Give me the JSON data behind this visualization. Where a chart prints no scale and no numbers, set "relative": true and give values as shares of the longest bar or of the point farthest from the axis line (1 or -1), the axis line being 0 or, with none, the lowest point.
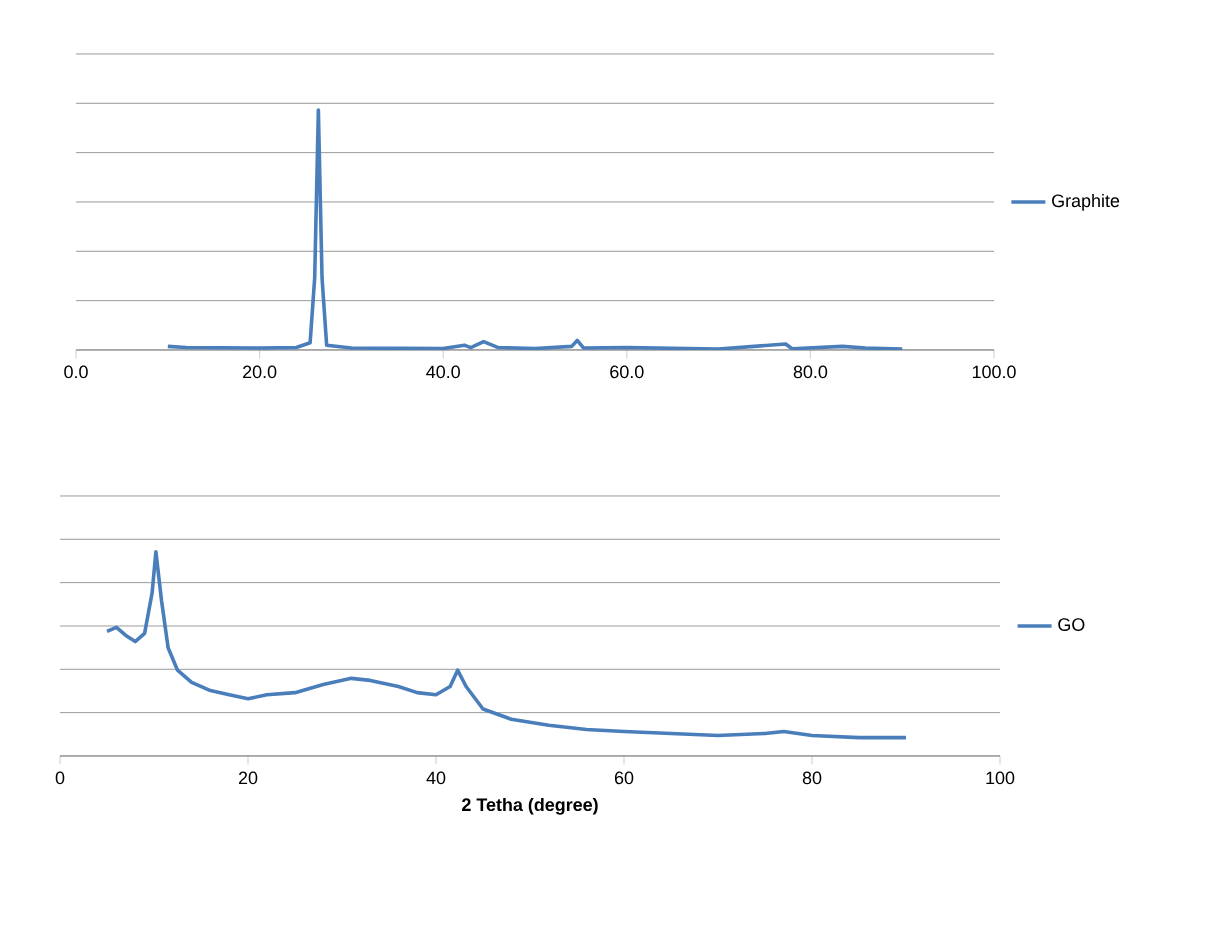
{
  "chart_data": [
    {
      "type": "line",
      "relative": true,
      "xlim": [
        0,
        100
      ],
      "xticks": [
        {
          "value": 0,
          "label": "0.0"
        },
        {
          "value": 20,
          "label": "20.0"
        },
        {
          "value": 40,
          "label": "40.0"
        },
        {
          "value": 60,
          "label": "60.0"
        },
        {
          "value": 80,
          "label": "80.0"
        },
        {
          "value": 100,
          "label": "100.0"
        }
      ],
      "grid": "y",
      "legend": "right",
      "series": [
        {
          "name": "Graphite",
          "color": "#4a7ebb",
          "x": [
            10,
            12,
            20,
            24,
            25.5,
            26,
            26.4,
            26.8,
            27.3,
            30,
            40,
            42.3,
            43,
            44.4,
            46,
            50,
            54,
            54.6,
            55.3,
            60,
            70,
            77.3,
            78,
            83.5,
            86,
            90
          ],
          "values": [
            0.015,
            0.01,
            0.008,
            0.01,
            0.03,
            0.3,
            1.0,
            0.3,
            0.02,
            0.008,
            0.006,
            0.02,
            0.01,
            0.035,
            0.01,
            0.006,
            0.015,
            0.04,
            0.008,
            0.01,
            0.004,
            0.025,
            0.005,
            0.015,
            0.008,
            0.004
          ]
        }
      ]
    },
    {
      "type": "line",
      "relative": true,
      "xlim": [
        0,
        100
      ],
      "xticks": [
        0,
        20,
        40,
        60,
        80,
        100
      ],
      "xlabel": "**2 Tetha (degree)**",
      "grid": "y",
      "legend": "right",
      "series": [
        {
          "name": "GO",
          "color": "#4a7ebb",
          "x": [
            5,
            6,
            7,
            8,
            9,
            9.8,
            10.2,
            10.8,
            11.5,
            12.5,
            14,
            16,
            18,
            20,
            22,
            25,
            28,
            31,
            33,
            36,
            38,
            40,
            41.5,
            42.3,
            43.2,
            45,
            48,
            52,
            56,
            60,
            65,
            70,
            75,
            77,
            80,
            85,
            90
          ],
          "values": [
            0.61,
            0.63,
            0.59,
            0.56,
            0.6,
            0.8,
            1.0,
            0.76,
            0.53,
            0.42,
            0.36,
            0.32,
            0.3,
            0.28,
            0.3,
            0.31,
            0.35,
            0.38,
            0.37,
            0.34,
            0.31,
            0.3,
            0.34,
            0.42,
            0.34,
            0.23,
            0.18,
            0.15,
            0.13,
            0.12,
            0.11,
            0.1,
            0.11,
            0.12,
            0.1,
            0.09,
            0.09
          ]
        }
      ]
    }
  ]
}
